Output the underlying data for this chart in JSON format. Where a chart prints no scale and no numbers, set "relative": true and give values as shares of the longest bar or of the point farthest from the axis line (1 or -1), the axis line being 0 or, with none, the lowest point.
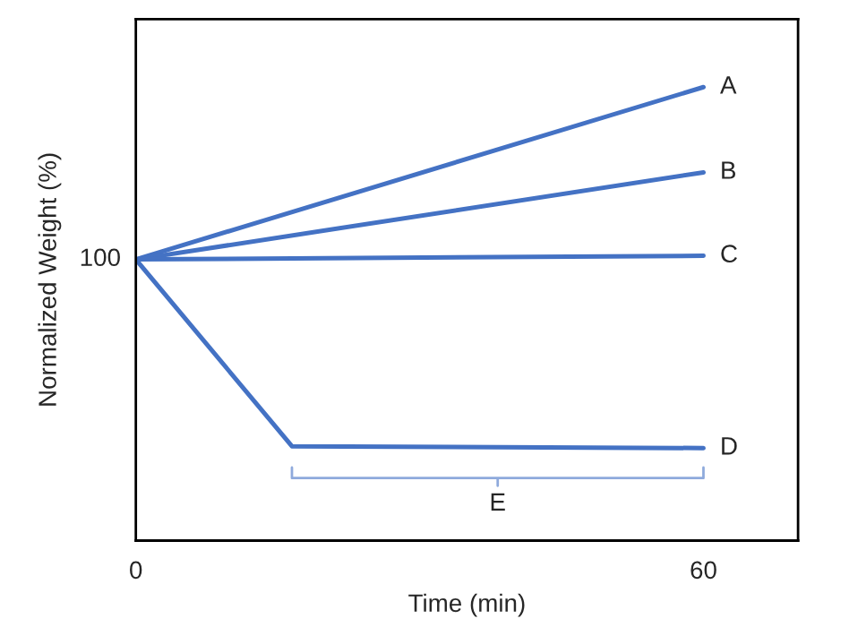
{
  "chart_data": {
    "type": "line",
    "relative": true,
    "xlabel": "Time (min)",
    "ylabel": "Normalized Weight (%)",
    "xlim": [
      0,
      70
    ],
    "xticks": [
      0,
      60
    ],
    "grid": false,
    "legend": false,
    "series": [
      {
        "name": "A",
        "color": "#4472c4",
        "x": [
          0,
          60
        ],
        "values": [
          0.62,
          1
        ]
      },
      {
        "name": "B",
        "color": "#4472c4",
        "x": [
          0,
          60
        ],
        "values": [
          0.62,
          0.812
        ]
      },
      {
        "name": "C",
        "color": "#4472c4",
        "x": [
          0,
          60
        ],
        "values": [
          0.62,
          0.628
        ]
      },
      {
        "name": "D",
        "color": "#4472c4",
        "x": [
          0,
          16.5,
          60
        ],
        "values": [
          0.62,
          0.208,
          0.204
        ]
      }
    ],
    "annotations": [
      {
        "text": "100",
        "x": 0,
        "y": 0.62
      },
      "E"
    ]
  }
}
